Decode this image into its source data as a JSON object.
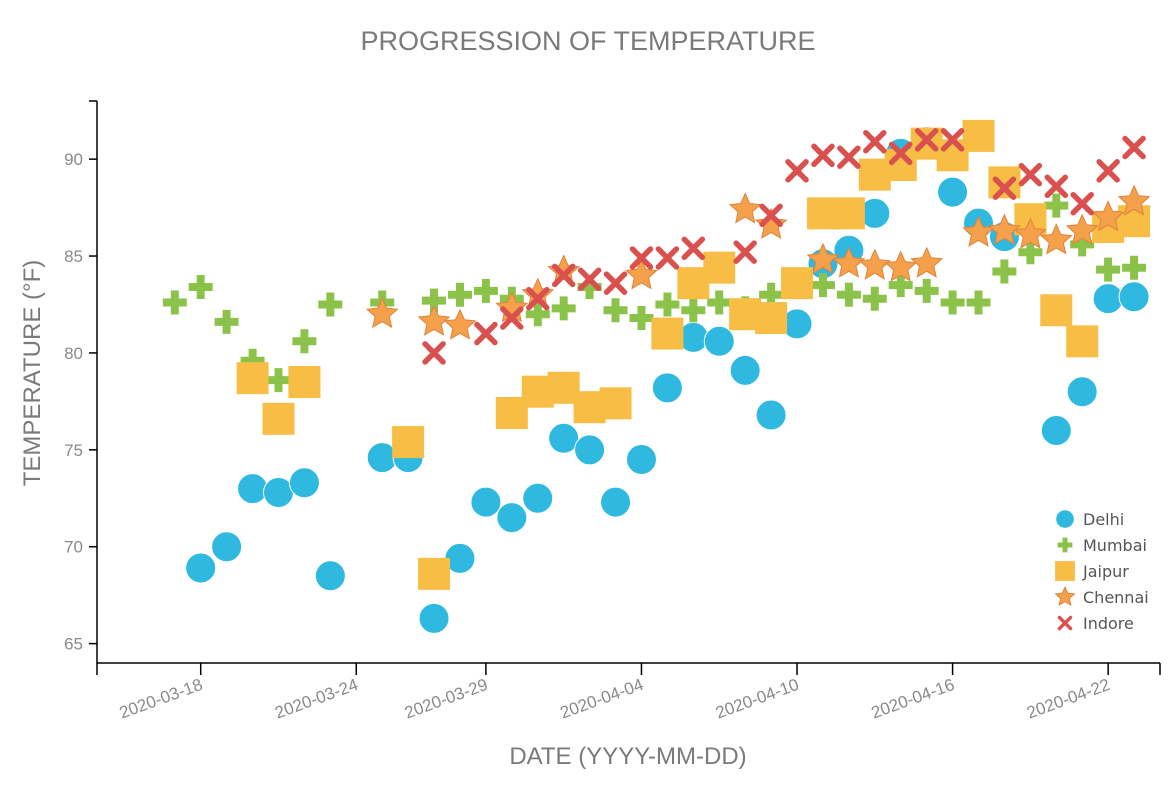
{
  "chart_data": {
    "type": "scatter",
    "title": "PROGRESSION OF TEMPERATURE",
    "xlabel": "DATE (YYYY-MM-DD)",
    "ylabel": "TEMPERATURE (°F)",
    "xlim": [
      "2020-03-14",
      "2020-04-24"
    ],
    "ylim": [
      64,
      93
    ],
    "x_ticks": [
      "2020-03-18",
      "2020-03-24",
      "2020-03-29",
      "2020-04-04",
      "2020-04-10",
      "2020-04-16",
      "2020-04-22"
    ],
    "y_ticks": [
      65,
      70,
      75,
      80,
      85,
      90
    ],
    "grid": false,
    "legend_position": "bottom-right",
    "series": [
      {
        "name": "Delhi",
        "marker": "circle",
        "color": "#2fb8e0",
        "points": [
          [
            "2020-03-18",
            68.9
          ],
          [
            "2020-03-19",
            70.0
          ],
          [
            "2020-03-20",
            73.0
          ],
          [
            "2020-03-21",
            72.8
          ],
          [
            "2020-03-22",
            73.3
          ],
          [
            "2020-03-23",
            68.5
          ],
          [
            "2020-03-25",
            74.6
          ],
          [
            "2020-03-26",
            74.6
          ],
          [
            "2020-03-27",
            66.3
          ],
          [
            "2020-03-28",
            69.4
          ],
          [
            "2020-03-29",
            72.3
          ],
          [
            "2020-03-30",
            71.5
          ],
          [
            "2020-03-31",
            72.5
          ],
          [
            "2020-04-01",
            75.6
          ],
          [
            "2020-04-02",
            75.0
          ],
          [
            "2020-04-03",
            72.3
          ],
          [
            "2020-04-04",
            74.5
          ],
          [
            "2020-04-05",
            78.2
          ],
          [
            "2020-04-06",
            80.8
          ],
          [
            "2020-04-07",
            80.6
          ],
          [
            "2020-04-08",
            79.1
          ],
          [
            "2020-04-09",
            76.8
          ],
          [
            "2020-04-10",
            81.5
          ],
          [
            "2020-04-11",
            84.6
          ],
          [
            "2020-04-12",
            85.3
          ],
          [
            "2020-04-13",
            87.2
          ],
          [
            "2020-04-14",
            90.3
          ],
          [
            "2020-04-15",
            90.9
          ],
          [
            "2020-04-16",
            88.3
          ],
          [
            "2020-04-17",
            86.7
          ],
          [
            "2020-04-18",
            86.0
          ],
          [
            "2020-04-20",
            76.0
          ],
          [
            "2020-04-21",
            78.0
          ],
          [
            "2020-04-22",
            82.8
          ],
          [
            "2020-04-23",
            82.9
          ]
        ]
      },
      {
        "name": "Mumbai",
        "marker": "plus",
        "color": "#8bc34a",
        "points": [
          [
            "2020-03-17",
            82.6
          ],
          [
            "2020-03-18",
            83.4
          ],
          [
            "2020-03-19",
            81.6
          ],
          [
            "2020-03-20",
            79.6
          ],
          [
            "2020-03-21",
            78.6
          ],
          [
            "2020-03-22",
            80.6
          ],
          [
            "2020-03-23",
            82.5
          ],
          [
            "2020-03-25",
            82.6
          ],
          [
            "2020-03-27",
            82.7
          ],
          [
            "2020-03-28",
            83.0
          ],
          [
            "2020-03-29",
            83.2
          ],
          [
            "2020-03-30",
            82.8
          ],
          [
            "2020-03-31",
            82.0
          ],
          [
            "2020-04-01",
            82.3
          ],
          [
            "2020-04-02",
            83.4
          ],
          [
            "2020-04-03",
            82.2
          ],
          [
            "2020-04-04",
            81.8
          ],
          [
            "2020-04-05",
            82.5
          ],
          [
            "2020-04-06",
            82.2
          ],
          [
            "2020-04-07",
            82.6
          ],
          [
            "2020-04-08",
            82.3
          ],
          [
            "2020-04-09",
            83.0
          ],
          [
            "2020-04-10",
            83.4
          ],
          [
            "2020-04-11",
            83.5
          ],
          [
            "2020-04-12",
            83.0
          ],
          [
            "2020-04-13",
            82.8
          ],
          [
            "2020-04-14",
            83.5
          ],
          [
            "2020-04-15",
            83.2
          ],
          [
            "2020-04-16",
            82.6
          ],
          [
            "2020-04-17",
            82.6
          ],
          [
            "2020-04-18",
            84.2
          ],
          [
            "2020-04-19",
            85.2
          ],
          [
            "2020-04-20",
            87.6
          ],
          [
            "2020-04-21",
            85.6
          ],
          [
            "2020-04-22",
            84.3
          ],
          [
            "2020-04-23",
            84.4
          ]
        ]
      },
      {
        "name": "Jaipur",
        "marker": "square",
        "color": "#f7bd45",
        "points": [
          [
            "2020-03-20",
            78.7
          ],
          [
            "2020-03-21",
            76.6
          ],
          [
            "2020-03-22",
            78.5
          ],
          [
            "2020-03-26",
            75.4
          ],
          [
            "2020-03-27",
            68.6
          ],
          [
            "2020-03-30",
            76.9
          ],
          [
            "2020-03-31",
            78.0
          ],
          [
            "2020-04-01",
            78.2
          ],
          [
            "2020-04-02",
            77.2
          ],
          [
            "2020-04-03",
            77.4
          ],
          [
            "2020-04-05",
            81.0
          ],
          [
            "2020-04-06",
            83.6
          ],
          [
            "2020-04-07",
            84.4
          ],
          [
            "2020-04-08",
            82.0
          ],
          [
            "2020-04-09",
            81.8
          ],
          [
            "2020-04-10",
            83.6
          ],
          [
            "2020-04-11",
            87.2
          ],
          [
            "2020-04-12",
            87.2
          ],
          [
            "2020-04-13",
            89.2
          ],
          [
            "2020-04-14",
            89.7
          ],
          [
            "2020-04-15",
            90.8
          ],
          [
            "2020-04-16",
            90.2
          ],
          [
            "2020-04-17",
            91.2
          ],
          [
            "2020-04-18",
            88.8
          ],
          [
            "2020-04-19",
            86.9
          ],
          [
            "2020-04-20",
            82.2
          ],
          [
            "2020-04-21",
            80.6
          ],
          [
            "2020-04-22",
            86.5
          ],
          [
            "2020-04-23",
            86.8
          ]
        ]
      },
      {
        "name": "Chennai",
        "marker": "star",
        "color": "#f5a04a",
        "points": [
          [
            "2020-03-25",
            82.0
          ],
          [
            "2020-03-27",
            81.6
          ],
          [
            "2020-03-28",
            81.4
          ],
          [
            "2020-03-30",
            82.3
          ],
          [
            "2020-03-31",
            83.0
          ],
          [
            "2020-04-01",
            84.2
          ],
          [
            "2020-04-04",
            84.0
          ],
          [
            "2020-04-08",
            87.4
          ],
          [
            "2020-04-09",
            86.6
          ],
          [
            "2020-04-11",
            84.8
          ],
          [
            "2020-04-12",
            84.6
          ],
          [
            "2020-04-13",
            84.5
          ],
          [
            "2020-04-14",
            84.4
          ],
          [
            "2020-04-15",
            84.6
          ],
          [
            "2020-04-17",
            86.2
          ],
          [
            "2020-04-18",
            86.3
          ],
          [
            "2020-04-19",
            86.1
          ],
          [
            "2020-04-20",
            85.8
          ],
          [
            "2020-04-21",
            86.3
          ],
          [
            "2020-04-22",
            87.0
          ],
          [
            "2020-04-23",
            87.8
          ]
        ]
      },
      {
        "name": "Indore",
        "marker": "x",
        "color": "#d9504f",
        "points": [
          [
            "2020-03-27",
            80.0
          ],
          [
            "2020-03-29",
            81.0
          ],
          [
            "2020-03-30",
            81.8
          ],
          [
            "2020-03-31",
            82.8
          ],
          [
            "2020-04-01",
            84.0
          ],
          [
            "2020-04-02",
            83.8
          ],
          [
            "2020-04-03",
            83.6
          ],
          [
            "2020-04-04",
            84.9
          ],
          [
            "2020-04-05",
            84.9
          ],
          [
            "2020-04-06",
            85.4
          ],
          [
            "2020-04-08",
            85.2
          ],
          [
            "2020-04-09",
            87.1
          ],
          [
            "2020-04-10",
            89.4
          ],
          [
            "2020-04-11",
            90.2
          ],
          [
            "2020-04-12",
            90.1
          ],
          [
            "2020-04-13",
            90.9
          ],
          [
            "2020-04-14",
            90.3
          ],
          [
            "2020-04-15",
            91.0
          ],
          [
            "2020-04-16",
            91.0
          ],
          [
            "2020-04-18",
            88.5
          ],
          [
            "2020-04-19",
            89.2
          ],
          [
            "2020-04-20",
            88.6
          ],
          [
            "2020-04-21",
            87.7
          ],
          [
            "2020-04-22",
            89.4
          ],
          [
            "2020-04-23",
            90.6
          ]
        ]
      }
    ]
  }
}
